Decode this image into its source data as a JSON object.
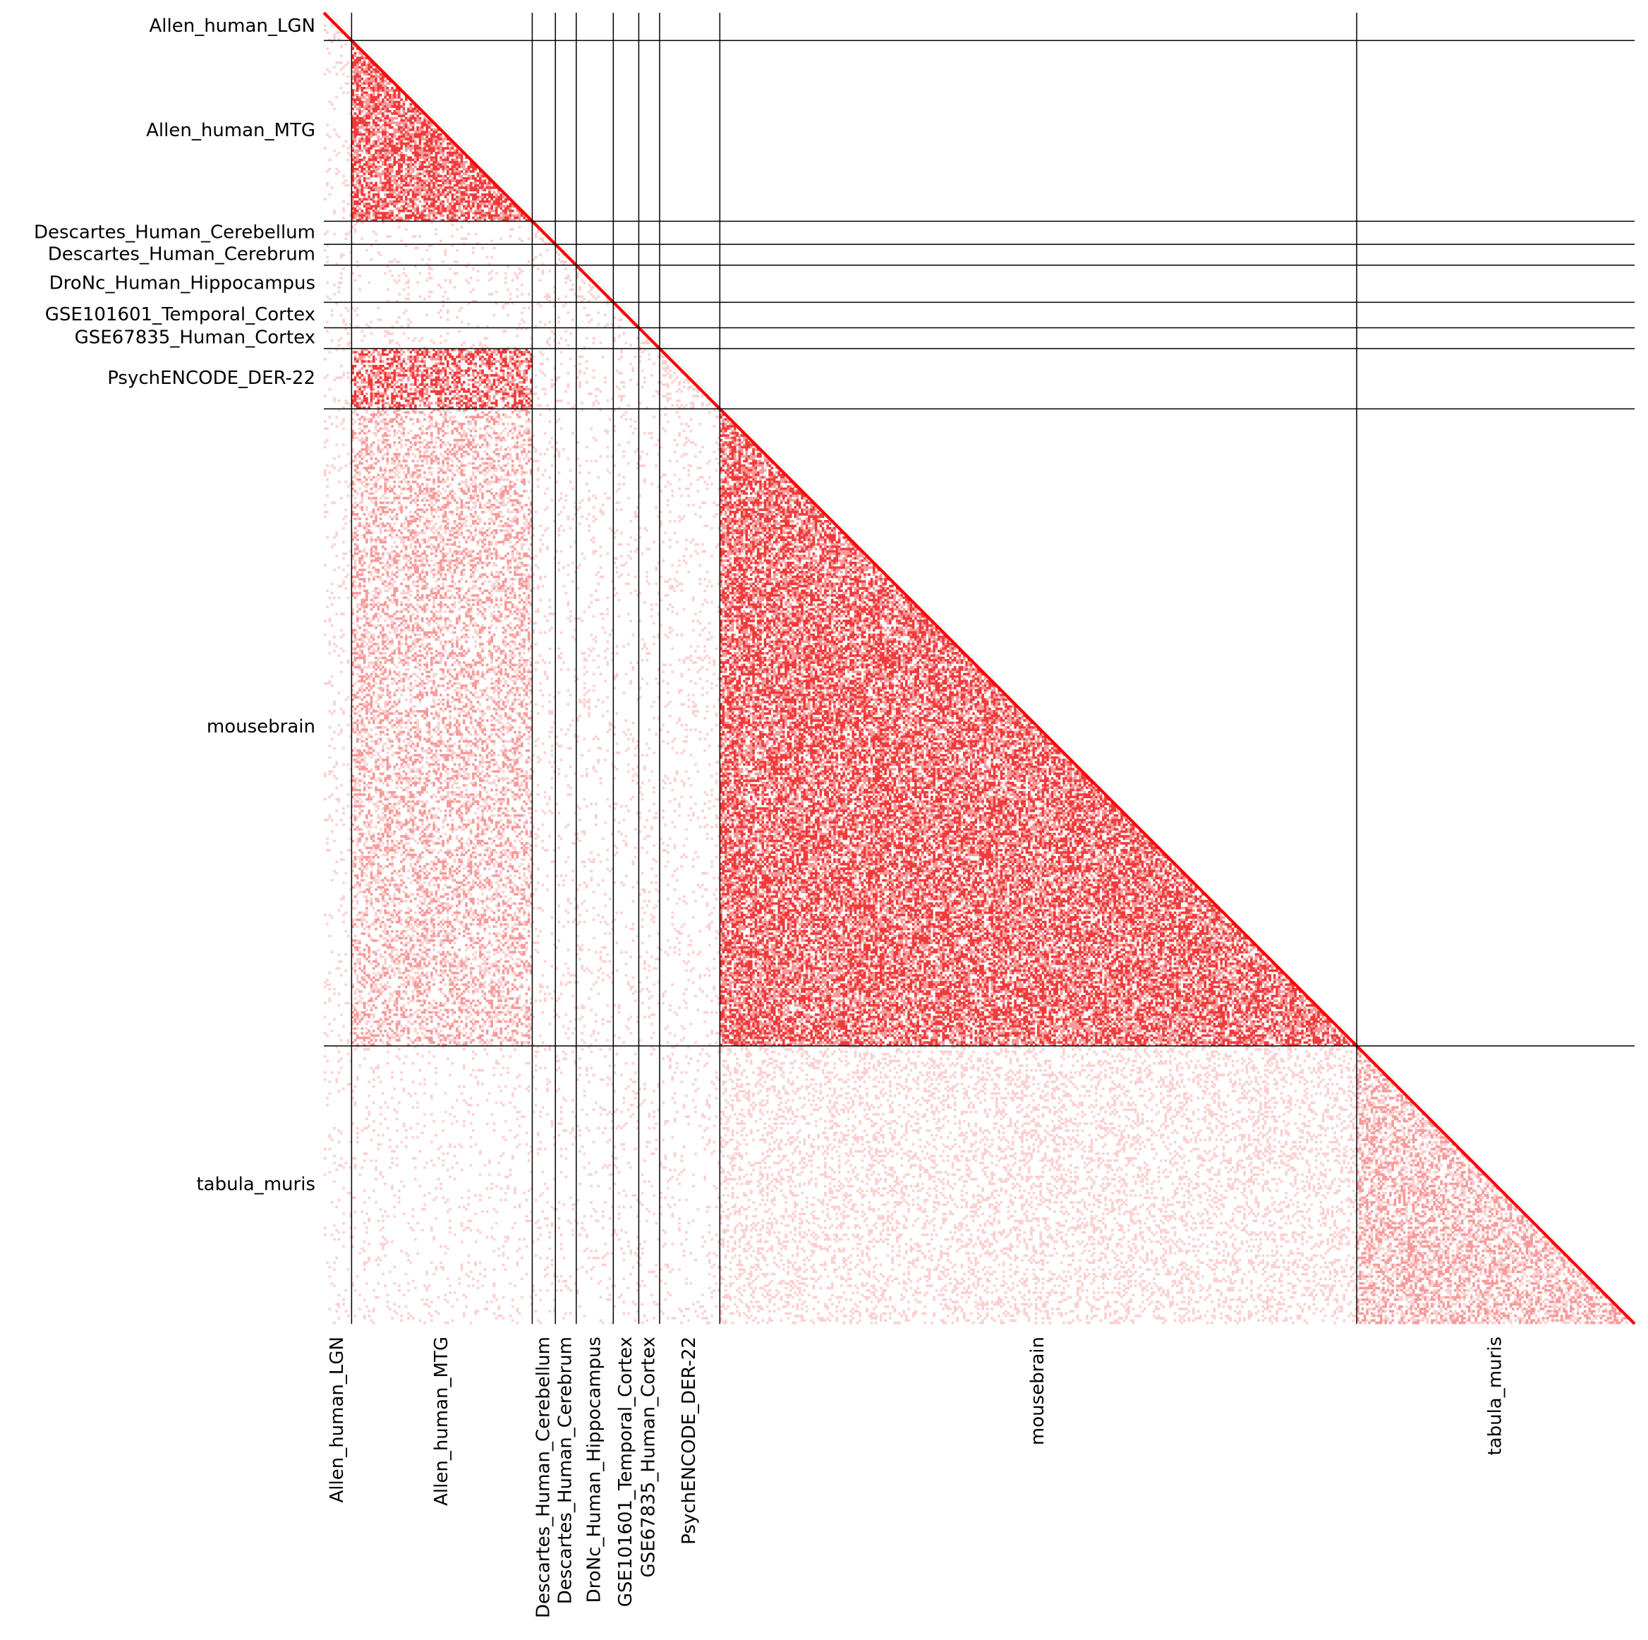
{
  "chart_data": {
    "type": "heatmap",
    "layout": "lower-triangular correlation matrix",
    "title": "",
    "xlabel": "",
    "ylabel": "",
    "grid": false,
    "legend": "none",
    "colors": {
      "diagonal": "#ff0000",
      "strong": "#f03a3a",
      "medium": "#f79a9a",
      "weak": "#fcd0d0",
      "negative": "#3b4cc0",
      "background": "#ffffff",
      "separator": "#000000"
    },
    "total_cells": 566,
    "groups": [
      {
        "name": "Allen_human_LGN",
        "n": 12
      },
      {
        "name": "Allen_human_MTG",
        "n": 78
      },
      {
        "name": "Descartes_Human_Cerebellum",
        "n": 10
      },
      {
        "name": "Descartes_Human_Cerebrum",
        "n": 9
      },
      {
        "name": "DroNc_Human_Hippocampus",
        "n": 16
      },
      {
        "name": "GSE101601_Temporal_Cortex",
        "n": 11
      },
      {
        "name": "GSE67835_Human_Cortex",
        "n": 9
      },
      {
        "name": "PsychENCODE_DER-22",
        "n": 26
      },
      {
        "name": "mousebrain",
        "n": 275
      },
      {
        "name": "tabula_muris",
        "n": 120
      }
    ],
    "blocks": [
      {
        "row_group": "Allen_human_MTG",
        "col_group": "Allen_human_MTG",
        "strength": "strong"
      },
      {
        "row_group": "PsychENCODE_DER-22",
        "col_group": "Allen_human_MTG",
        "strength": "strong"
      },
      {
        "row_group": "mousebrain",
        "col_group": "mousebrain",
        "strength": "strong"
      },
      {
        "row_group": "mousebrain",
        "col_group": "Allen_human_MTG",
        "strength": "medium"
      },
      {
        "row_group": "tabula_muris",
        "col_group": "tabula_muris",
        "strength": "medium"
      },
      {
        "row_group": "tabula_muris",
        "col_group": "mousebrain",
        "strength": "weak"
      }
    ]
  }
}
